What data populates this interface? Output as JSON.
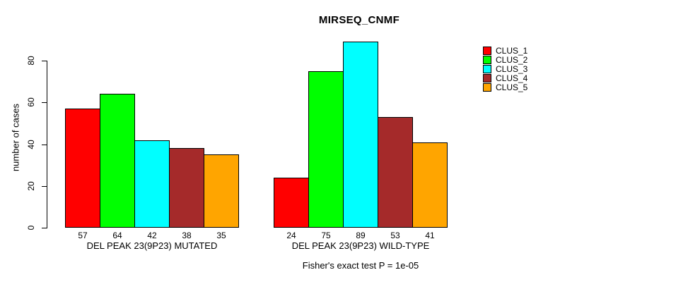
{
  "title": "MIRSEQ_CNMF",
  "footnote": "Fisher's exact test P = 1e-05",
  "y_axis": {
    "label": "number of cases",
    "ticks": [
      0,
      20,
      40,
      60,
      80
    ]
  },
  "legend": {
    "position": "right",
    "items": [
      {
        "label": "CLUS_1",
        "color": "#FF0000"
      },
      {
        "label": "CLUS_2",
        "color": "#00FF00"
      },
      {
        "label": "CLUS_3",
        "color": "#00FFFF"
      },
      {
        "label": "CLUS_4",
        "color": "#A52A2A"
      },
      {
        "label": "CLUS_5",
        "color": "#FFA500"
      }
    ]
  },
  "chart_data": {
    "type": "bar",
    "title": "MIRSEQ_CNMF",
    "xlabel": "",
    "ylabel": "number of cases",
    "ylim": [
      0,
      89
    ],
    "yticks": [
      0,
      20,
      40,
      60,
      80
    ],
    "grid": false,
    "legend_position": "right",
    "bar_value_labels_shown": true,
    "categories": [
      "DEL PEAK 23(9P23) MUTATED",
      "DEL PEAK 23(9P23) WILD-TYPE"
    ],
    "series": [
      {
        "name": "CLUS_1",
        "color": "#FF0000",
        "values": [
          57,
          24
        ]
      },
      {
        "name": "CLUS_2",
        "color": "#00FF00",
        "values": [
          64,
          75
        ]
      },
      {
        "name": "CLUS_3",
        "color": "#00FFFF",
        "values": [
          42,
          89
        ]
      },
      {
        "name": "CLUS_4",
        "color": "#A52A2A",
        "values": [
          38,
          53
        ]
      },
      {
        "name": "CLUS_5",
        "color": "#FFA500",
        "values": [
          35,
          41
        ]
      }
    ],
    "annotation": "Fisher's exact test P = 1e-05"
  }
}
